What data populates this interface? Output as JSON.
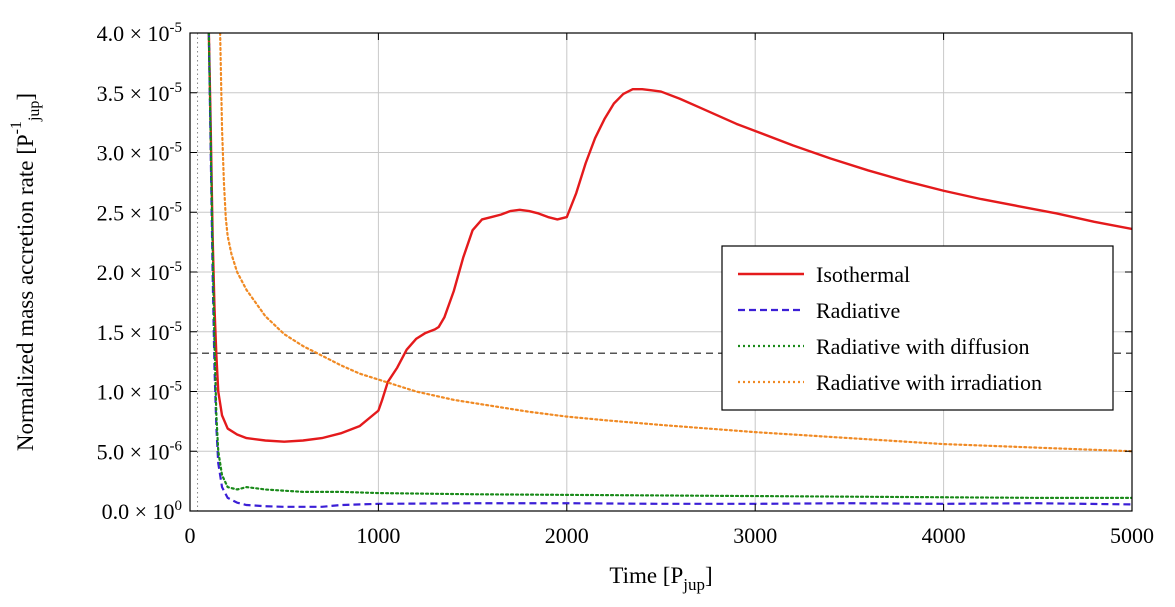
{
  "chart_data": {
    "type": "line",
    "title": "",
    "xlabel": "Time [P_jup]",
    "xlabel_main": "Time [P",
    "xlabel_sub": "jup",
    "xlabel_close": "]",
    "ylabel": "Normalized mass accretion rate [P_jup^-1]",
    "ylabel_main": "Normalized mass accretion rate [P",
    "ylabel_sup": "-1",
    "ylabel_sub": "jup",
    "ylabel_close": "]",
    "xlim": [
      0,
      5000
    ],
    "ylim": [
      0,
      4e-05
    ],
    "grid": true,
    "legend_position": "center-right",
    "x_ticks": [
      0,
      1000,
      2000,
      3000,
      4000,
      5000
    ],
    "x_tick_labels": [
      "0",
      "1000",
      "2000",
      "3000",
      "4000",
      "5000"
    ],
    "y_ticks": [
      0,
      5e-06,
      1e-05,
      1.5e-05,
      2e-05,
      2.5e-05,
      3e-05,
      3.5e-05,
      4e-05
    ],
    "y_tick_labels": [
      {
        "mant": "0.0",
        "exp": "0"
      },
      {
        "mant": "5.0",
        "exp": "-6"
      },
      {
        "mant": "1.0",
        "exp": "-5"
      },
      {
        "mant": "1.5",
        "exp": "-5"
      },
      {
        "mant": "2.0",
        "exp": "-5"
      },
      {
        "mant": "2.5",
        "exp": "-5"
      },
      {
        "mant": "3.0",
        "exp": "-5"
      },
      {
        "mant": "3.5",
        "exp": "-5"
      },
      {
        "mant": "4.0",
        "exp": "-5"
      }
    ],
    "reference_lines": [
      {
        "orientation": "horizontal",
        "value": 1.32e-05,
        "color": "#555555",
        "dash": "dashed"
      },
      {
        "orientation": "vertical",
        "value": 40,
        "color": "#888888",
        "dash": "dotted"
      }
    ],
    "series": [
      {
        "name": "Isothermal",
        "color": "#e41a1c",
        "dash": "solid",
        "x": [
          100,
          110,
          120,
          130,
          140,
          150,
          170,
          200,
          250,
          300,
          400,
          500,
          600,
          700,
          800,
          900,
          1000,
          1020,
          1050,
          1100,
          1150,
          1200,
          1250,
          1300,
          1320,
          1350,
          1400,
          1450,
          1500,
          1550,
          1600,
          1650,
          1700,
          1750,
          1800,
          1850,
          1900,
          1950,
          2000,
          2050,
          2100,
          2150,
          2200,
          2250,
          2300,
          2350,
          2400,
          2450,
          2500,
          2600,
          2700,
          2800,
          2900,
          3000,
          3200,
          3400,
          3600,
          3800,
          4000,
          4200,
          4400,
          4600,
          4800,
          5000
        ],
        "y": [
          4e-05,
          3.2e-05,
          2.3e-05,
          1.7e-05,
          1.3e-05,
          1e-05,
          8e-06,
          6.9e-06,
          6.4e-06,
          6.1e-06,
          5.9e-06,
          5.8e-06,
          5.9e-06,
          6.1e-06,
          6.5e-06,
          7.1e-06,
          8.4e-06,
          9.3e-06,
          1.08e-05,
          1.2e-05,
          1.35e-05,
          1.44e-05,
          1.49e-05,
          1.52e-05,
          1.54e-05,
          1.62e-05,
          1.84e-05,
          2.12e-05,
          2.35e-05,
          2.44e-05,
          2.46e-05,
          2.48e-05,
          2.51e-05,
          2.52e-05,
          2.51e-05,
          2.49e-05,
          2.46e-05,
          2.44e-05,
          2.46e-05,
          2.66e-05,
          2.91e-05,
          3.12e-05,
          3.28e-05,
          3.41e-05,
          3.49e-05,
          3.53e-05,
          3.53e-05,
          3.52e-05,
          3.51e-05,
          3.45e-05,
          3.38e-05,
          3.31e-05,
          3.24e-05,
          3.18e-05,
          3.06e-05,
          2.95e-05,
          2.85e-05,
          2.76e-05,
          2.68e-05,
          2.61e-05,
          2.55e-05,
          2.49e-05,
          2.42e-05,
          2.36e-05
        ]
      },
      {
        "name": "Radiative",
        "color": "#3b1fd6",
        "dash": "dashed",
        "x": [
          100,
          110,
          120,
          130,
          140,
          150,
          170,
          200,
          250,
          300,
          400,
          500,
          600,
          700,
          800,
          1000,
          1500,
          2000,
          2500,
          3000,
          3500,
          4000,
          4500,
          5000
        ],
        "y": [
          4e-05,
          3e-05,
          2e-05,
          1.2e-05,
          7e-06,
          4e-06,
          2e-06,
          1.1e-06,
          7e-07,
          5e-07,
          4e-07,
          3.5e-07,
          3.5e-07,
          3.5e-07,
          5e-07,
          6e-07,
          6.5e-07,
          6.5e-07,
          6e-07,
          6e-07,
          6.5e-07,
          6e-07,
          6.5e-07,
          5.5e-07
        ]
      },
      {
        "name": "Radiative with diffusion",
        "color": "#1a8a1a",
        "dash": "dotted",
        "x": [
          100,
          110,
          120,
          130,
          140,
          150,
          170,
          200,
          250,
          300,
          400,
          500,
          600,
          800,
          1000,
          1500,
          2000,
          2500,
          3000,
          3500,
          4000,
          4500,
          5000
        ],
        "y": [
          4e-05,
          3.1e-05,
          2.2e-05,
          1.4e-05,
          8e-06,
          5e-06,
          3e-06,
          2e-06,
          1.8e-06,
          2e-06,
          1.8e-06,
          1.7e-06,
          1.6e-06,
          1.6e-06,
          1.5e-06,
          1.4e-06,
          1.35e-06,
          1.3e-06,
          1.25e-06,
          1.2e-06,
          1.15e-06,
          1.1e-06,
          1.1e-06
        ]
      },
      {
        "name": "Radiative with irradiation",
        "color": "#f08a24",
        "dash": "dotted",
        "x": [
          160,
          170,
          180,
          190,
          200,
          220,
          250,
          300,
          400,
          500,
          600,
          700,
          800,
          900,
          1000,
          1200,
          1400,
          1600,
          1800,
          2000,
          2200,
          2500,
          3000,
          3500,
          4000,
          4500,
          5000
        ],
        "y": [
          4e-05,
          3.2e-05,
          2.75e-05,
          2.45e-05,
          2.3e-05,
          2.15e-05,
          2e-05,
          1.85e-05,
          1.63e-05,
          1.48e-05,
          1.38e-05,
          1.3e-05,
          1.22e-05,
          1.15e-05,
          1.1e-05,
          1e-05,
          9.3e-06,
          8.8e-06,
          8.3e-06,
          7.9e-06,
          7.6e-06,
          7.2e-06,
          6.6e-06,
          6.1e-06,
          5.6e-06,
          5.3e-06,
          5e-06
        ]
      }
    ]
  }
}
